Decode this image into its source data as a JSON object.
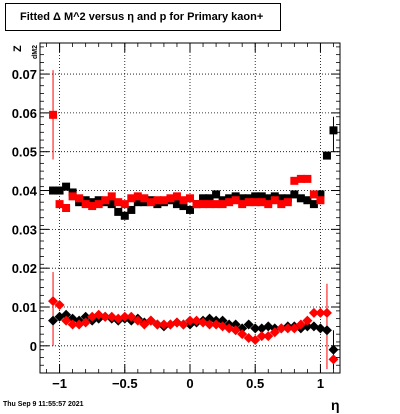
{
  "title": "Fitted Δ M^2 versus η and p for Primary kaon+",
  "footer": "Thu Sep  9 11:55:57 2021",
  "chart_data": {
    "type": "scatter",
    "title": "Fitted Δ M^2 versus η and p for Primary kaon+",
    "xlabel": "η",
    "ylabel": "Z",
    "ylabel_sub": "dM2",
    "xlim": [
      -1.15,
      1.15
    ],
    "ylim": [
      -0.007,
      0.078
    ],
    "x_ticks": [
      -1,
      -0.5,
      0,
      0.5,
      1
    ],
    "x_tick_labels": [
      "−1",
      "−0.5",
      "0",
      "0.5",
      "1"
    ],
    "y_ticks": [
      0,
      0.01,
      0.02,
      0.03,
      0.04,
      0.05,
      0.06,
      0.07
    ],
    "y_tick_labels": [
      "0",
      "0.01",
      "0.02",
      "0.03",
      "0.04",
      "0.05",
      "0.06",
      "0.07"
    ],
    "grid": true,
    "series": [
      {
        "color": "#000000",
        "marker": "square",
        "points": [
          [
            -1.05,
            0.04
          ],
          [
            -1.0,
            0.04
          ],
          [
            -0.95,
            0.041
          ],
          [
            -0.9,
            0.0395
          ],
          [
            -0.85,
            0.037
          ],
          [
            -0.8,
            0.0375
          ],
          [
            -0.75,
            0.037
          ],
          [
            -0.7,
            0.0375
          ],
          [
            -0.65,
            0.037
          ],
          [
            -0.6,
            0.0365
          ],
          [
            -0.55,
            0.0345
          ],
          [
            -0.5,
            0.0335
          ],
          [
            -0.45,
            0.035
          ],
          [
            -0.4,
            0.037
          ],
          [
            -0.35,
            0.037
          ],
          [
            -0.3,
            0.0375
          ],
          [
            -0.25,
            0.0365
          ],
          [
            -0.2,
            0.037
          ],
          [
            -0.15,
            0.0375
          ],
          [
            -0.1,
            0.0365
          ],
          [
            -0.05,
            0.036
          ],
          [
            0.0,
            0.035
          ],
          [
            0.05,
            0.0365
          ],
          [
            0.1,
            0.038
          ],
          [
            0.15,
            0.038
          ],
          [
            0.2,
            0.039
          ],
          [
            0.25,
            0.0375
          ],
          [
            0.3,
            0.038
          ],
          [
            0.35,
            0.0385
          ],
          [
            0.4,
            0.038
          ],
          [
            0.45,
            0.038
          ],
          [
            0.5,
            0.0385
          ],
          [
            0.55,
            0.0385
          ],
          [
            0.6,
            0.038
          ],
          [
            0.65,
            0.0385
          ],
          [
            0.7,
            0.038
          ],
          [
            0.75,
            0.038
          ],
          [
            0.8,
            0.039
          ],
          [
            0.85,
            0.038
          ],
          [
            0.9,
            0.0375
          ],
          [
            0.95,
            0.0365
          ],
          [
            1.0,
            0.039
          ],
          [
            1.05,
            0.049
          ],
          [
            1.1,
            0.0555
          ]
        ]
      },
      {
        "color": "#ff0000",
        "marker": "square",
        "points": [
          [
            -1.05,
            0.0595
          ],
          [
            -1.0,
            0.0365
          ],
          [
            -0.95,
            0.0355
          ],
          [
            -0.9,
            0.0385
          ],
          [
            -0.85,
            0.038
          ],
          [
            -0.8,
            0.0365
          ],
          [
            -0.75,
            0.036
          ],
          [
            -0.7,
            0.0365
          ],
          [
            -0.65,
            0.0375
          ],
          [
            -0.6,
            0.0385
          ],
          [
            -0.55,
            0.037
          ],
          [
            -0.5,
            0.0365
          ],
          [
            -0.45,
            0.038
          ],
          [
            -0.4,
            0.0385
          ],
          [
            -0.35,
            0.038
          ],
          [
            -0.3,
            0.037
          ],
          [
            -0.25,
            0.0375
          ],
          [
            -0.2,
            0.0375
          ],
          [
            -0.15,
            0.038
          ],
          [
            -0.1,
            0.0385
          ],
          [
            -0.05,
            0.0375
          ],
          [
            0.0,
            0.038
          ],
          [
            0.05,
            0.0365
          ],
          [
            0.1,
            0.0365
          ],
          [
            0.15,
            0.0365
          ],
          [
            0.2,
            0.0365
          ],
          [
            0.25,
            0.0365
          ],
          [
            0.3,
            0.037
          ],
          [
            0.35,
            0.0375
          ],
          [
            0.4,
            0.0365
          ],
          [
            0.45,
            0.037
          ],
          [
            0.5,
            0.037
          ],
          [
            0.55,
            0.037
          ],
          [
            0.6,
            0.0365
          ],
          [
            0.65,
            0.0375
          ],
          [
            0.7,
            0.0365
          ],
          [
            0.75,
            0.037
          ],
          [
            0.8,
            0.0425
          ],
          [
            0.85,
            0.043
          ],
          [
            0.9,
            0.043
          ],
          [
            0.95,
            0.039
          ],
          [
            1.0,
            0.0375
          ]
        ]
      },
      {
        "color": "#000000",
        "marker": "diamond",
        "points": [
          [
            -1.05,
            0.0065
          ],
          [
            -1.0,
            0.0075
          ],
          [
            -0.95,
            0.008
          ],
          [
            -0.9,
            0.007
          ],
          [
            -0.85,
            0.0065
          ],
          [
            -0.8,
            0.0075
          ],
          [
            -0.75,
            0.0065
          ],
          [
            -0.7,
            0.007
          ],
          [
            -0.65,
            0.0075
          ],
          [
            -0.6,
            0.007
          ],
          [
            -0.55,
            0.0065
          ],
          [
            -0.5,
            0.007
          ],
          [
            -0.45,
            0.0065
          ],
          [
            -0.4,
            0.007
          ],
          [
            -0.35,
            0.006
          ],
          [
            -0.3,
            0.0065
          ],
          [
            -0.25,
            0.0055
          ],
          [
            -0.2,
            0.005
          ],
          [
            -0.15,
            0.0055
          ],
          [
            -0.1,
            0.006
          ],
          [
            -0.05,
            0.0055
          ],
          [
            0.0,
            0.0055
          ],
          [
            0.05,
            0.006
          ],
          [
            0.1,
            0.0065
          ],
          [
            0.15,
            0.007
          ],
          [
            0.2,
            0.0065
          ],
          [
            0.25,
            0.0065
          ],
          [
            0.3,
            0.0055
          ],
          [
            0.35,
            0.0055
          ],
          [
            0.4,
            0.0045
          ],
          [
            0.45,
            0.0055
          ],
          [
            0.5,
            0.0045
          ],
          [
            0.55,
            0.0045
          ],
          [
            0.6,
            0.005
          ],
          [
            0.65,
            0.0045
          ],
          [
            0.7,
            0.0045
          ],
          [
            0.75,
            0.005
          ],
          [
            0.8,
            0.005
          ],
          [
            0.85,
            0.0045
          ],
          [
            0.9,
            0.005
          ],
          [
            0.95,
            0.005
          ],
          [
            1.0,
            0.0045
          ],
          [
            1.05,
            0.004
          ],
          [
            1.1,
            -0.001
          ]
        ]
      },
      {
        "color": "#ff0000",
        "marker": "diamond",
        "points": [
          [
            -1.05,
            0.0115
          ],
          [
            -1.0,
            0.0105
          ],
          [
            -0.95,
            0.0065
          ],
          [
            -0.9,
            0.0055
          ],
          [
            -0.85,
            0.0055
          ],
          [
            -0.8,
            0.006
          ],
          [
            -0.75,
            0.0075
          ],
          [
            -0.7,
            0.008
          ],
          [
            -0.65,
            0.0075
          ],
          [
            -0.6,
            0.0075
          ],
          [
            -0.55,
            0.007
          ],
          [
            -0.5,
            0.0075
          ],
          [
            -0.45,
            0.0075
          ],
          [
            -0.4,
            0.0065
          ],
          [
            -0.35,
            0.0055
          ],
          [
            -0.3,
            0.0065
          ],
          [
            -0.25,
            0.0055
          ],
          [
            -0.2,
            0.0055
          ],
          [
            -0.15,
            0.0055
          ],
          [
            -0.1,
            0.006
          ],
          [
            -0.05,
            0.0055
          ],
          [
            0.0,
            0.0065
          ],
          [
            0.05,
            0.0065
          ],
          [
            0.1,
            0.006
          ],
          [
            0.15,
            0.0055
          ],
          [
            0.2,
            0.0055
          ],
          [
            0.25,
            0.005
          ],
          [
            0.3,
            0.0045
          ],
          [
            0.35,
            0.004
          ],
          [
            0.4,
            0.003
          ],
          [
            0.45,
            0.002
          ],
          [
            0.5,
            0.0015
          ],
          [
            0.55,
            0.0025
          ],
          [
            0.6,
            0.0025
          ],
          [
            0.65,
            0.0035
          ],
          [
            0.7,
            0.0045
          ],
          [
            0.75,
            0.0045
          ],
          [
            0.8,
            0.0045
          ],
          [
            0.85,
            0.0055
          ],
          [
            0.9,
            0.0065
          ],
          [
            0.95,
            0.0085
          ],
          [
            1.0,
            0.0085
          ],
          [
            1.05,
            0.0085
          ],
          [
            1.1,
            -0.0035
          ]
        ]
      }
    ],
    "error_bars": [
      {
        "x": -1.05,
        "lo": 0.048,
        "hi": 0.071,
        "color": "#ff0000"
      },
      {
        "x": -1.05,
        "lo": 0.0,
        "hi": 0.019,
        "color": "#ff0000"
      },
      {
        "x": 1.05,
        "lo": -0.006,
        "hi": 0.016,
        "color": "#ff0000"
      },
      {
        "x": 1.1,
        "lo": 0.05,
        "hi": 0.059,
        "color": "#000000"
      },
      {
        "x": 1.1,
        "lo": -0.006,
        "hi": 0.004,
        "color": "#000000"
      }
    ]
  }
}
